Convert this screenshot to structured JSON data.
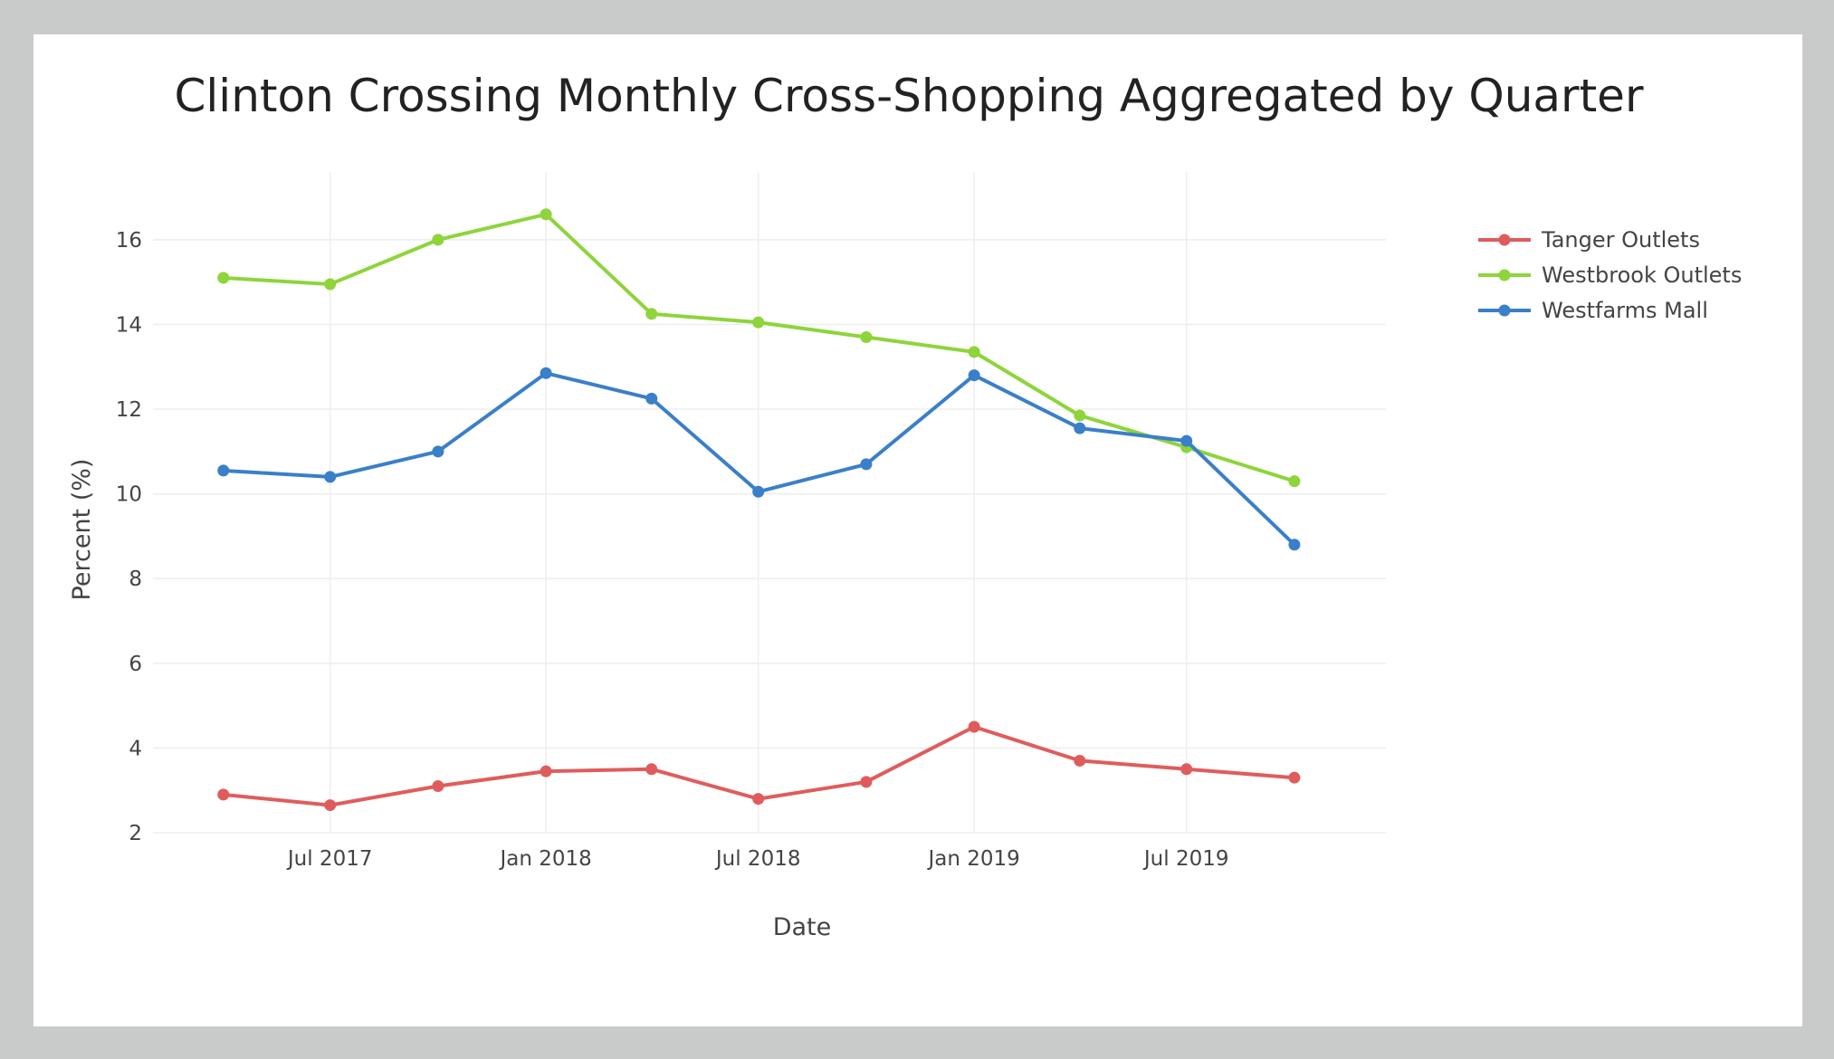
{
  "chart_data": {
    "type": "line",
    "title": "Clinton Crossing Monthly Cross-Shopping Aggregated by Quarter",
    "xlabel": "Date",
    "ylabel": "Percent (%)",
    "x": [
      "2017-04",
      "2017-07",
      "2017-10",
      "2018-01",
      "2018-04",
      "2018-07",
      "2018-10",
      "2019-01",
      "2019-04",
      "2019-07",
      "2019-10"
    ],
    "x_tick_values": [
      "2017-07",
      "2018-01",
      "2018-07",
      "2019-01",
      "2019-07"
    ],
    "x_tick_labels": [
      "Jul 2017",
      "Jan 2018",
      "Jul 2018",
      "Jan 2019",
      "Jul 2019"
    ],
    "y_ticks": [
      2,
      4,
      6,
      8,
      10,
      12,
      14,
      16
    ],
    "ylim": [
      2,
      17.6
    ],
    "grid": true,
    "legend_position": "top-right",
    "series": [
      {
        "name": "Tanger Outlets",
        "color": "#e05c5c",
        "values": [
          2.9,
          2.65,
          3.1,
          3.45,
          3.5,
          2.8,
          3.2,
          4.5,
          3.7,
          3.5,
          3.3
        ]
      },
      {
        "name": "Westbrook Outlets",
        "color": "#8ed43b",
        "values": [
          15.1,
          14.95,
          16.0,
          16.6,
          14.25,
          14.05,
          13.7,
          13.35,
          11.85,
          11.1,
          10.3
        ]
      },
      {
        "name": "Westfarms Mall",
        "color": "#3a7fc9",
        "values": [
          10.55,
          10.4,
          11.0,
          12.85,
          12.25,
          10.05,
          10.7,
          12.8,
          11.55,
          11.25,
          8.8
        ]
      }
    ]
  }
}
